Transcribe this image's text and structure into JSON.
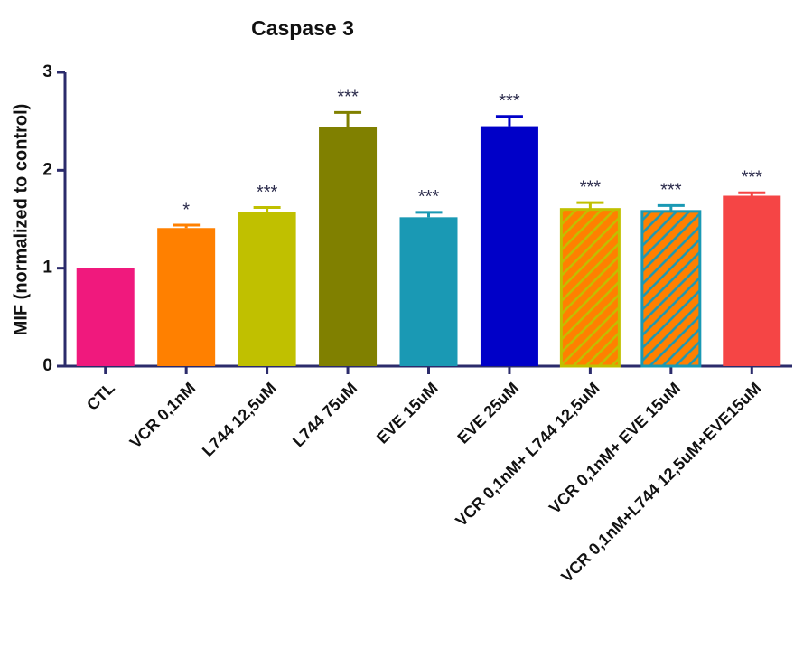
{
  "chart_data": {
    "type": "bar",
    "title": "Caspase 3",
    "y_label": "MIF (normalized to control)",
    "categories": [
      "CTL",
      "VCR 0,1nM",
      "L744 12,5uM",
      "L744 75uM",
      "EVE 15uM",
      "EVE 25uM",
      "VCR 0,1nM+ L744 12,5uM",
      "VCR 0,1nM+ EVE 15uM",
      "VCR 0,1nM+L744 12,5uM+EVE15uM"
    ],
    "values": [
      1.0,
      1.41,
      1.57,
      2.44,
      1.52,
      2.45,
      1.6,
      1.58,
      1.74
    ],
    "errors": [
      0,
      0.03,
      0.05,
      0.15,
      0.05,
      0.1,
      0.07,
      0.06,
      0.03
    ],
    "annotations": [
      null,
      "*",
      "***",
      "***",
      "***",
      "***",
      "***",
      "***",
      "***"
    ],
    "colors": [
      "#f0197d",
      "#ff8000",
      "#c0c000",
      "#808000",
      "#1a99b4",
      "#0000c8",
      "#ff8000",
      "#ff8000",
      "#f54545"
    ],
    "hatch_colors": [
      null,
      null,
      null,
      null,
      null,
      null,
      "#c0c000",
      "#1a99b4",
      null
    ],
    "axis_color": "#2b2b6b",
    "ylim": [
      0,
      3
    ],
    "yticks": [
      0,
      1,
      2,
      3
    ]
  }
}
